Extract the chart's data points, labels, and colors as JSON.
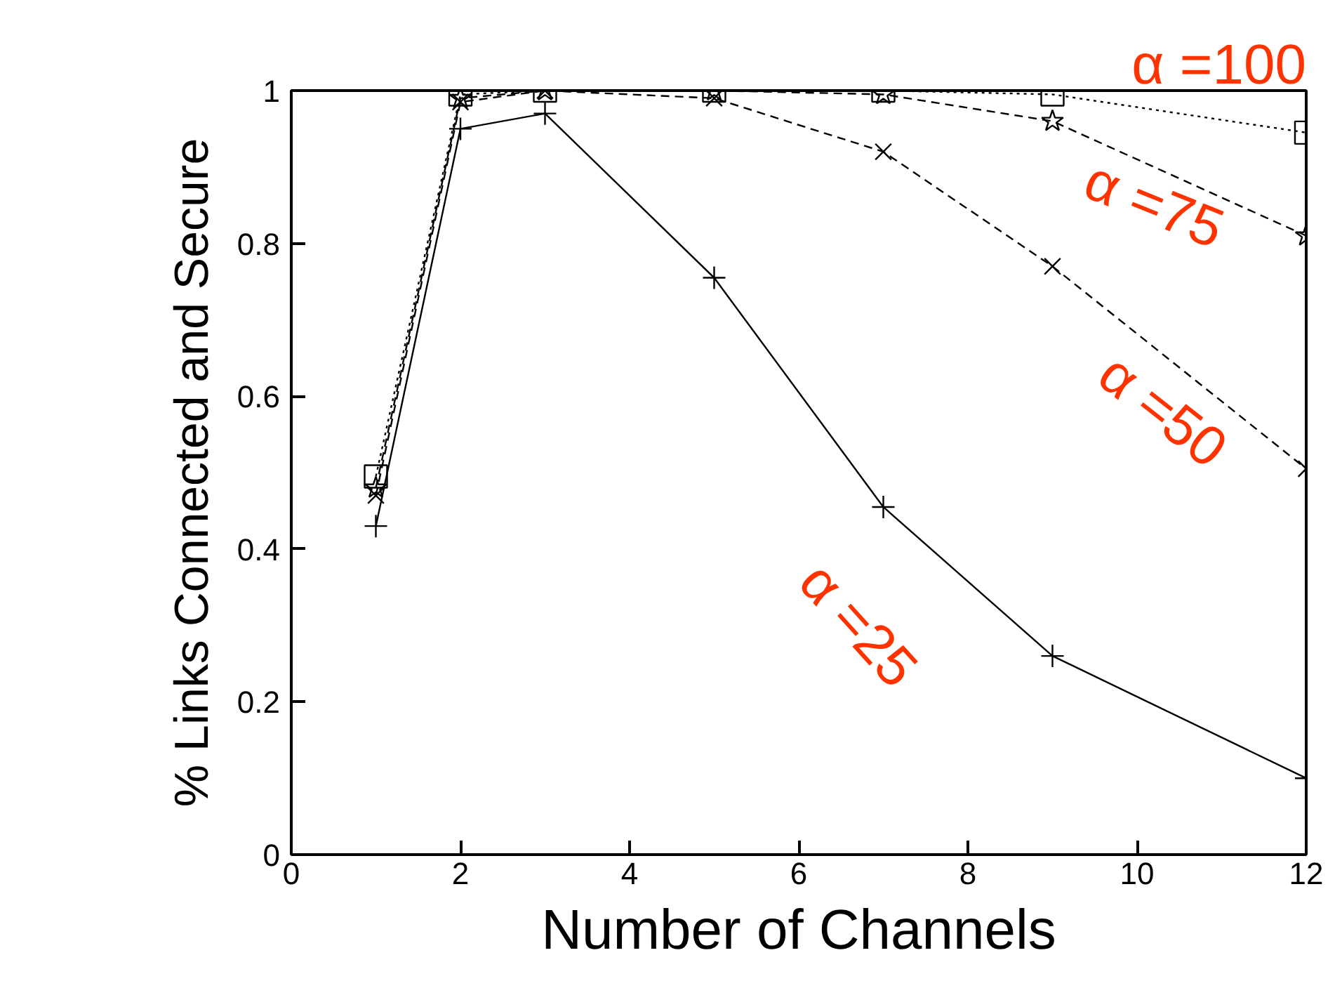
{
  "chart_data": {
    "type": "line",
    "xlabel": "Number of Channels",
    "ylabel": "% Links Connected and Secure",
    "x": [
      1,
      2,
      3,
      5,
      7,
      9,
      12
    ],
    "series": [
      {
        "name": "α =25",
        "color": "#000000",
        "marker": "cross",
        "line_style": "solid",
        "values": [
          0.43,
          0.95,
          0.97,
          0.755,
          0.455,
          0.26,
          0.1
        ]
      },
      {
        "name": "α =50",
        "color": "#000000",
        "marker": "x",
        "line_style": "dashed",
        "values": [
          0.47,
          0.985,
          1.0,
          0.99,
          0.92,
          0.77,
          0.505
        ]
      },
      {
        "name": "α =75",
        "color": "#000000",
        "marker": "star",
        "line_style": "dashed",
        "values": [
          0.48,
          0.99,
          1.0,
          1.0,
          0.995,
          0.96,
          0.81
        ]
      },
      {
        "name": "α =100",
        "color": "#000000",
        "marker": "square",
        "line_style": "dotted",
        "values": [
          0.495,
          0.995,
          1.0,
          1.0,
          1.0,
          0.995,
          0.945
        ]
      }
    ],
    "xlim": [
      0,
      12
    ],
    "ylim": [
      0,
      1
    ],
    "xticks": [
      0,
      2,
      4,
      6,
      8,
      10,
      12
    ],
    "yticks": [
      0,
      0.2,
      0.4,
      0.6,
      0.8,
      1
    ],
    "grid": false
  }
}
